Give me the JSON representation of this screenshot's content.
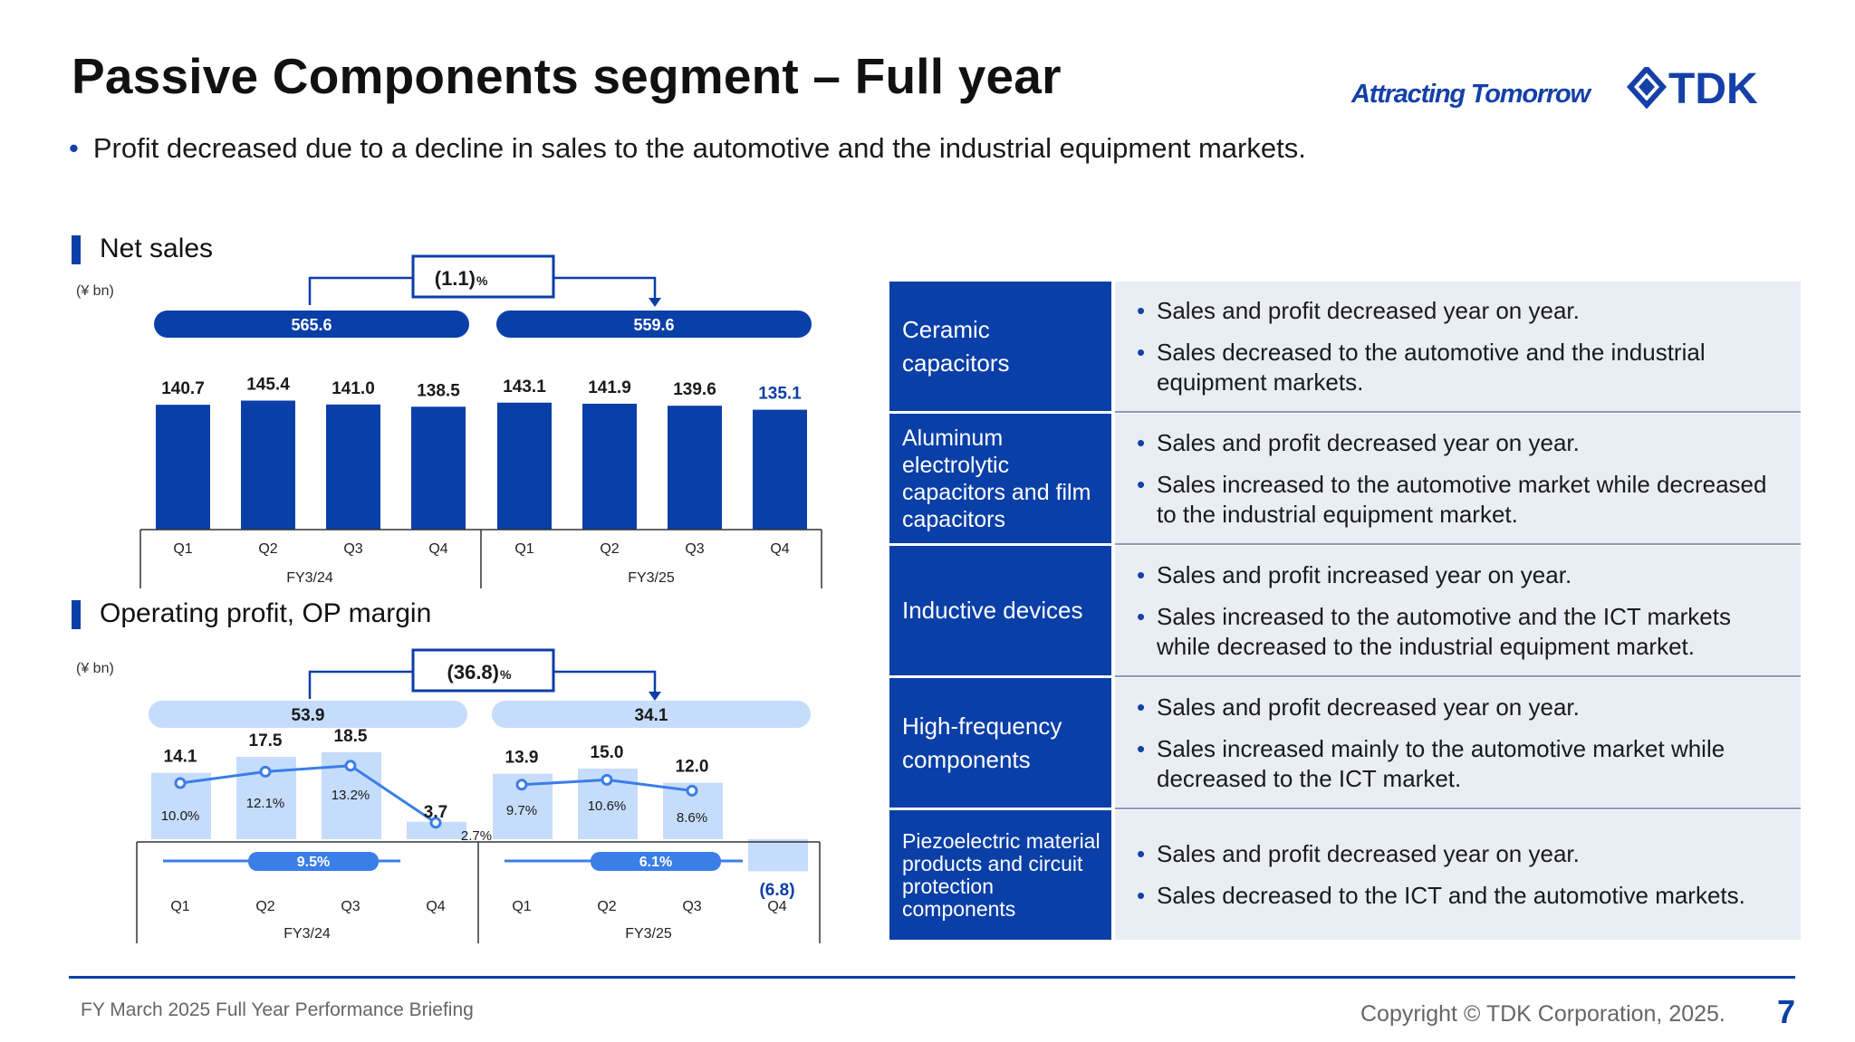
{
  "header": {
    "title": "Passive Components segment – Full year",
    "tagline": "Attracting Tomorrow",
    "logo_text": "TDK",
    "bullet": "Profit decreased due to a decline in sales to the automotive and the industrial equipment markets."
  },
  "colors": {
    "brand": "#0a3fa8",
    "light": "#c6dcfb",
    "line": "#3a7ee8",
    "table_bg": "#e9edf4"
  },
  "net_sales": {
    "heading": "Net sales",
    "unit": "(¥ bn)",
    "change": "(1.1)",
    "change_unit": "%"
  },
  "op_profit": {
    "heading": "Operating profit, OP margin",
    "unit": "(¥ bn)",
    "change": "(36.8)",
    "change_unit": "%"
  },
  "chart_data": [
    {
      "type": "bar",
      "title": "Net sales",
      "unit": "(¥ bn)",
      "categories": [
        "Q1",
        "Q2",
        "Q3",
        "Q4",
        "Q1",
        "Q2",
        "Q3",
        "Q4"
      ],
      "groups": [
        {
          "label": "FY3/24",
          "total": "565.6"
        },
        {
          "label": "FY3/25",
          "total": "559.6"
        }
      ],
      "values": [
        140.7,
        145.4,
        141.0,
        138.5,
        143.1,
        141.9,
        139.6,
        135.1
      ],
      "value_labels": [
        "140.7",
        "145.4",
        "141.0",
        "138.5",
        "143.1",
        "141.9",
        "139.6",
        "135.1"
      ],
      "yoy_change": "(1.1)%",
      "ylim": [
        0,
        160
      ],
      "grid": false
    },
    {
      "type": "bar",
      "title": "Operating profit, OP margin",
      "unit": "(¥ bn)",
      "categories": [
        "Q1",
        "Q2",
        "Q3",
        "Q4",
        "Q1",
        "Q2",
        "Q3",
        "Q4"
      ],
      "groups": [
        {
          "label": "FY3/24",
          "total": "53.9",
          "margin": "9.5%"
        },
        {
          "label": "FY3/25",
          "total": "34.1",
          "margin": "6.1%"
        }
      ],
      "values": [
        14.1,
        17.5,
        18.5,
        3.7,
        13.9,
        15.0,
        12.0,
        -6.8
      ],
      "value_labels": [
        "14.1",
        "17.5",
        "18.5",
        "3.7",
        "13.9",
        "15.0",
        "12.0",
        "(6.8)"
      ],
      "margin_values": [
        10.0,
        12.1,
        13.2,
        2.7,
        9.7,
        10.6,
        8.6,
        null
      ],
      "margin_labels": [
        "10.0%",
        "12.1%",
        "13.2%",
        "2.7%",
        "9.7%",
        "10.6%",
        "8.6%",
        ""
      ],
      "yoy_change": "(36.8)%",
      "ylim": [
        -8,
        20
      ],
      "grid": false
    }
  ],
  "table": {
    "rows": [
      {
        "name": "Ceramic capacitors",
        "points": [
          "Sales and profit decreased year on year.",
          "Sales decreased to the automotive and the industrial equipment markets."
        ]
      },
      {
        "name": "Aluminum electrolytic capacitors and film capacitors",
        "points": [
          "Sales and profit decreased year on year.",
          "Sales increased to the automotive market while decreased to the industrial equipment market."
        ]
      },
      {
        "name": "Inductive devices",
        "points": [
          "Sales and profit increased year on year.",
          "Sales increased to the automotive and the ICT markets while decreased to the industrial equipment market."
        ]
      },
      {
        "name": "High-frequency components",
        "points": [
          "Sales and profit decreased year on year.",
          "Sales increased mainly to the automotive market while decreased to the ICT market."
        ]
      },
      {
        "name": "Piezoelectric material products and circuit protection components",
        "points": [
          "Sales and profit decreased year on year.",
          "Sales decreased to the ICT and the automotive markets."
        ]
      }
    ]
  },
  "footer": {
    "left": "FY March 2025 Full Year Performance Briefing",
    "right": "Copyright  © TDK Corporation, 2025.",
    "page": "7"
  }
}
